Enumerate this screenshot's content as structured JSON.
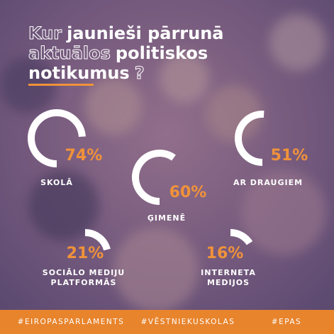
{
  "chart_data": {
    "type": "gauge",
    "title_lines": [
      [
        {
          "text": "Kur",
          "outline": true
        },
        {
          "text": "jaunieši pārrunā",
          "outline": false
        }
      ],
      [
        {
          "text": "aktuālos",
          "outline": true
        },
        {
          "text": "politiskos",
          "outline": false
        }
      ],
      [
        {
          "text": "notikumus",
          "outline": false
        },
        {
          "text": "?",
          "outline": true
        }
      ]
    ],
    "categories": [
      "SKOLĀ",
      "ĢIMENĒ",
      "AR DRAUGIEM",
      "SOCIĀLO MEDIJU PLATFORMĀS",
      "INTERNETA MEDIJOS"
    ],
    "values": [
      74,
      60,
      51,
      21,
      16
    ],
    "value_labels": [
      "74%",
      "60%",
      "51%",
      "21%",
      "16%"
    ],
    "color": "#ffffff",
    "label_color": "#f0923a",
    "ylim": [
      0,
      100
    ]
  },
  "footer": {
    "tags": [
      "#EIROPASPARLAMENTS",
      "#VĒSTNIEKUSKOLAS",
      "#EPAS"
    ]
  }
}
